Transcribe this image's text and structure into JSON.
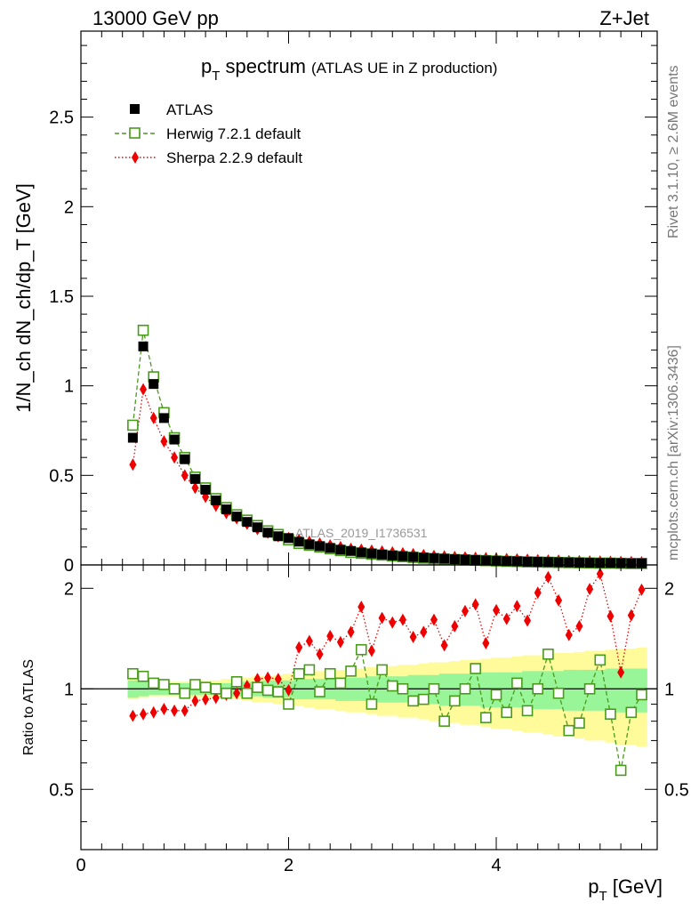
{
  "header": {
    "left_label": "13000 GeV pp",
    "right_label": "Z+Jet",
    "side_label_top": "Rivet 3.1.10, ≥ 2.6M events",
    "side_label_bottom": "mcplots.cern.ch [arXiv:1306.3436]"
  },
  "colors": {
    "atlas": "#000000",
    "herwig": "#4a9a1c",
    "sherpa": "#ee0000",
    "band_inner": "#98f598",
    "band_outer": "#fffa9a"
  },
  "chart_data": [
    {
      "type": "scatter",
      "panel": "main",
      "title_main": "p",
      "title_sub": "T",
      "title_rest": " spectrum",
      "title_note": "(ATLAS UE in Z production)",
      "ylabel": "1/N_ch dN_ch/dp_T [GeV]",
      "watermark": "ATLAS_2019_I1736531",
      "xlim": [
        0,
        5.55
      ],
      "ylim": [
        0,
        2.98
      ],
      "yticks": [
        0,
        0.5,
        1,
        1.5,
        2,
        2.5
      ],
      "ytick_labels": [
        "0",
        "0.5",
        "1",
        "1.5",
        "2",
        "2.5"
      ],
      "legend_position": "top-left",
      "x": [
        0.5,
        0.6,
        0.7,
        0.8,
        0.9,
        1.0,
        1.1,
        1.2,
        1.3,
        1.4,
        1.5,
        1.6,
        1.7,
        1.8,
        1.9,
        2.0,
        2.1,
        2.2,
        2.3,
        2.4,
        2.5,
        2.6,
        2.7,
        2.8,
        2.9,
        3.0,
        3.1,
        3.2,
        3.3,
        3.4,
        3.5,
        3.6,
        3.7,
        3.8,
        3.9,
        4.0,
        4.1,
        4.2,
        4.3,
        4.4,
        4.5,
        4.6,
        4.7,
        4.8,
        4.9,
        5.0,
        5.1,
        5.2,
        5.3,
        5.4
      ],
      "series": [
        {
          "name": "ATLAS",
          "marker": "square-filled",
          "values": [
            0.71,
            1.22,
            1.01,
            0.82,
            0.7,
            0.59,
            0.48,
            0.42,
            0.36,
            0.31,
            0.27,
            0.24,
            0.21,
            0.18,
            0.16,
            0.15,
            0.13,
            0.115,
            0.105,
            0.095,
            0.085,
            0.078,
            0.07,
            0.064,
            0.058,
            0.053,
            0.049,
            0.045,
            0.041,
            0.038,
            0.035,
            0.032,
            0.03,
            0.027,
            0.025,
            0.023,
            0.021,
            0.02,
            0.018,
            0.017,
            0.016,
            0.015,
            0.014,
            0.013,
            0.012,
            0.011,
            0.011,
            0.01,
            0.009,
            0.009
          ]
        },
        {
          "name": "Herwig 7.2.1 default",
          "marker": "square-open",
          "values": [
            0.78,
            1.31,
            1.05,
            0.85,
            0.71,
            0.6,
            0.49,
            0.43,
            0.37,
            0.32,
            0.28,
            0.25,
            0.22,
            0.19,
            0.17,
            0.14,
            0.12,
            0.11,
            0.1,
            0.09,
            0.08,
            0.07,
            0.065,
            0.06,
            0.055,
            0.05,
            0.046,
            0.042,
            0.038,
            0.035,
            0.032,
            0.03,
            0.028,
            0.026,
            0.024,
            0.022,
            0.02,
            0.019,
            0.017,
            0.016,
            0.015,
            0.014,
            0.013,
            0.012,
            0.011,
            0.01,
            0.01,
            0.009,
            0.008,
            0.008
          ]
        },
        {
          "name": "Sherpa 2.2.9 default",
          "marker": "diamond-filled",
          "values": [
            0.56,
            0.98,
            0.82,
            0.69,
            0.6,
            0.5,
            0.43,
            0.38,
            0.33,
            0.29,
            0.26,
            0.23,
            0.2,
            0.18,
            0.16,
            0.15,
            0.14,
            0.13,
            0.12,
            0.11,
            0.1,
            0.09,
            0.085,
            0.08,
            0.075,
            0.07,
            0.065,
            0.06,
            0.055,
            0.05,
            0.048,
            0.045,
            0.042,
            0.04,
            0.038,
            0.035,
            0.033,
            0.031,
            0.029,
            0.027,
            0.025,
            0.024,
            0.022,
            0.021,
            0.02,
            0.019,
            0.018,
            0.017,
            0.016,
            0.015
          ]
        }
      ]
    },
    {
      "type": "scatter",
      "panel": "ratio",
      "ylabel": "Ratio to ATLAS",
      "xlabel_main": "p",
      "xlabel_sub": "T",
      "xlabel_rest": " [GeV]",
      "xlim": [
        0,
        5.55
      ],
      "ylim": [
        0.33,
        2.35
      ],
      "yticks": [
        0.5,
        1,
        2
      ],
      "ytick_labels": [
        "0.5",
        "1",
        "2"
      ],
      "xticks": [
        0,
        2,
        4
      ],
      "xtick_labels": [
        "0",
        "2",
        "4"
      ],
      "reference_line": 1,
      "x": [
        0.5,
        0.6,
        0.7,
        0.8,
        0.9,
        1.0,
        1.1,
        1.2,
        1.3,
        1.4,
        1.5,
        1.6,
        1.7,
        1.8,
        1.9,
        2.0,
        2.1,
        2.2,
        2.3,
        2.4,
        2.5,
        2.6,
        2.7,
        2.8,
        2.9,
        3.0,
        3.1,
        3.2,
        3.3,
        3.4,
        3.5,
        3.6,
        3.7,
        3.8,
        3.9,
        4.0,
        4.1,
        4.2,
        4.3,
        4.4,
        4.5,
        4.6,
        4.7,
        4.8,
        4.9,
        5.0,
        5.1,
        5.2,
        5.3,
        5.4
      ],
      "band_inner": [
        0.06,
        0.05,
        0.04,
        0.04,
        0.04,
        0.04,
        0.04,
        0.04,
        0.04,
        0.04,
        0.05,
        0.05,
        0.05,
        0.06,
        0.06,
        0.06,
        0.07,
        0.07,
        0.07,
        0.07,
        0.08,
        0.08,
        0.08,
        0.09,
        0.09,
        0.09,
        0.09,
        0.1,
        0.1,
        0.1,
        0.11,
        0.11,
        0.11,
        0.11,
        0.12,
        0.12,
        0.12,
        0.12,
        0.13,
        0.13,
        0.13,
        0.13,
        0.14,
        0.14,
        0.14,
        0.14,
        0.15,
        0.15,
        0.15,
        0.15
      ],
      "band_outer": [
        0.07,
        0.06,
        0.05,
        0.05,
        0.05,
        0.05,
        0.06,
        0.06,
        0.06,
        0.07,
        0.07,
        0.08,
        0.09,
        0.09,
        0.1,
        0.11,
        0.11,
        0.12,
        0.13,
        0.13,
        0.14,
        0.15,
        0.15,
        0.16,
        0.17,
        0.17,
        0.18,
        0.18,
        0.19,
        0.2,
        0.2,
        0.21,
        0.22,
        0.22,
        0.23,
        0.24,
        0.24,
        0.25,
        0.26,
        0.26,
        0.27,
        0.28,
        0.28,
        0.29,
        0.3,
        0.3,
        0.31,
        0.32,
        0.32,
        0.33
      ],
      "series": [
        {
          "name": "Herwig 7.2.1 default",
          "marker": "square-open",
          "values": [
            1.11,
            1.09,
            1.04,
            1.03,
            1.0,
            0.97,
            1.03,
            1.01,
            1.0,
            0.97,
            1.05,
            0.97,
            1.01,
            0.99,
            0.98,
            0.9,
            1.11,
            1.14,
            0.98,
            1.11,
            1.04,
            1.13,
            1.31,
            0.9,
            1.14,
            1.02,
            1.0,
            0.92,
            0.93,
            1.0,
            0.8,
            0.92,
            1.0,
            1.15,
            0.82,
            0.96,
            0.85,
            1.04,
            0.86,
            1.0,
            1.27,
            0.97,
            0.75,
            0.79,
            1.0,
            1.22,
            0.84,
            0.57,
            0.85,
            0.96
          ]
        },
        {
          "name": "Sherpa 2.2.9 default",
          "marker": "diamond-filled",
          "values": [
            0.83,
            0.84,
            0.85,
            0.87,
            0.86,
            0.86,
            0.92,
            0.93,
            0.94,
            0.96,
            0.97,
            1.02,
            1.07,
            1.08,
            1.07,
            0.99,
            1.33,
            1.39,
            1.27,
            1.44,
            1.38,
            1.48,
            1.76,
            1.3,
            1.63,
            1.58,
            1.61,
            1.43,
            1.48,
            1.61,
            1.35,
            1.54,
            1.71,
            1.79,
            1.37,
            1.72,
            1.62,
            1.77,
            1.6,
            1.94,
            2.16,
            1.84,
            1.45,
            1.54,
            1.99,
            2.21,
            1.65,
            1.12,
            1.66,
            1.98
          ]
        }
      ]
    }
  ]
}
